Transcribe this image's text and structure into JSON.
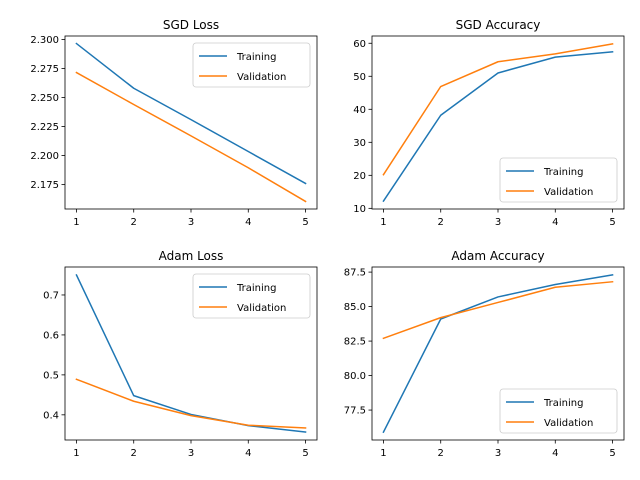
{
  "chart_data": [
    {
      "type": "line",
      "title": "SGD Loss",
      "x": [
        1,
        2,
        3,
        4,
        5
      ],
      "series": [
        {
          "name": "Training",
          "values": [
            2.2965,
            2.258,
            2.231,
            2.2035,
            2.176
          ]
        },
        {
          "name": "Validation",
          "values": [
            2.2715,
            2.244,
            2.217,
            2.1895,
            2.1605
          ]
        }
      ],
      "xlim": [
        0.8,
        5.2
      ],
      "ylim": [
        2.154,
        2.303
      ],
      "xticks": [
        1,
        2,
        3,
        4,
        5
      ],
      "yticks": [
        2.175,
        2.2,
        2.225,
        2.25,
        2.275,
        2.3
      ],
      "ytick_labels": [
        "2.175",
        "2.200",
        "2.225",
        "2.250",
        "2.275",
        "2.300"
      ],
      "legend": "upper right",
      "grid": false
    },
    {
      "type": "line",
      "title": "SGD Accuracy",
      "x": [
        1,
        2,
        3,
        4,
        5
      ],
      "series": [
        {
          "name": "Training",
          "values": [
            12.2,
            38.2,
            51.0,
            55.8,
            57.4
          ]
        },
        {
          "name": "Validation",
          "values": [
            20.2,
            46.9,
            54.4,
            56.8,
            59.8
          ]
        }
      ],
      "xlim": [
        0.8,
        5.2
      ],
      "ylim": [
        9.8,
        62.2
      ],
      "xticks": [
        1,
        2,
        3,
        4,
        5
      ],
      "yticks": [
        10,
        20,
        30,
        40,
        50,
        60
      ],
      "ytick_labels": [
        "10",
        "20",
        "30",
        "40",
        "50",
        "60"
      ],
      "legend": "lower right",
      "grid": false
    },
    {
      "type": "line",
      "title": "Adam Loss",
      "x": [
        1,
        2,
        3,
        4,
        5
      ],
      "series": [
        {
          "name": "Training",
          "values": [
            0.75,
            0.448,
            0.401,
            0.373,
            0.357
          ]
        },
        {
          "name": "Validation",
          "values": [
            0.489,
            0.434,
            0.398,
            0.374,
            0.367
          ]
        }
      ],
      "xlim": [
        0.8,
        5.2
      ],
      "ylim": [
        0.337,
        0.77
      ],
      "xticks": [
        1,
        2,
        3,
        4,
        5
      ],
      "yticks": [
        0.4,
        0.5,
        0.6,
        0.7
      ],
      "ytick_labels": [
        "0.4",
        "0.5",
        "0.6",
        "0.7"
      ],
      "legend": "upper right",
      "grid": false
    },
    {
      "type": "line",
      "title": "Adam Accuracy",
      "x": [
        1,
        2,
        3,
        4,
        5
      ],
      "series": [
        {
          "name": "Training",
          "values": [
            75.9,
            84.1,
            85.7,
            86.6,
            87.3
          ]
        },
        {
          "name": "Validation",
          "values": [
            82.7,
            84.2,
            85.3,
            86.4,
            86.8
          ]
        }
      ],
      "xlim": [
        0.8,
        5.2
      ],
      "ylim": [
        75.33,
        87.87
      ],
      "xticks": [
        1,
        2,
        3,
        4,
        5
      ],
      "yticks": [
        77.5,
        80.0,
        82.5,
        85.0,
        87.5
      ],
      "ytick_labels": [
        "77.5",
        "80.0",
        "82.5",
        "85.0",
        "87.5"
      ],
      "legend": "lower right",
      "grid": false
    }
  ],
  "colors": {
    "Training": "#1f77b4",
    "Validation": "#ff7f0e",
    "axes": "#000000",
    "legend_border": "#cccccc"
  }
}
